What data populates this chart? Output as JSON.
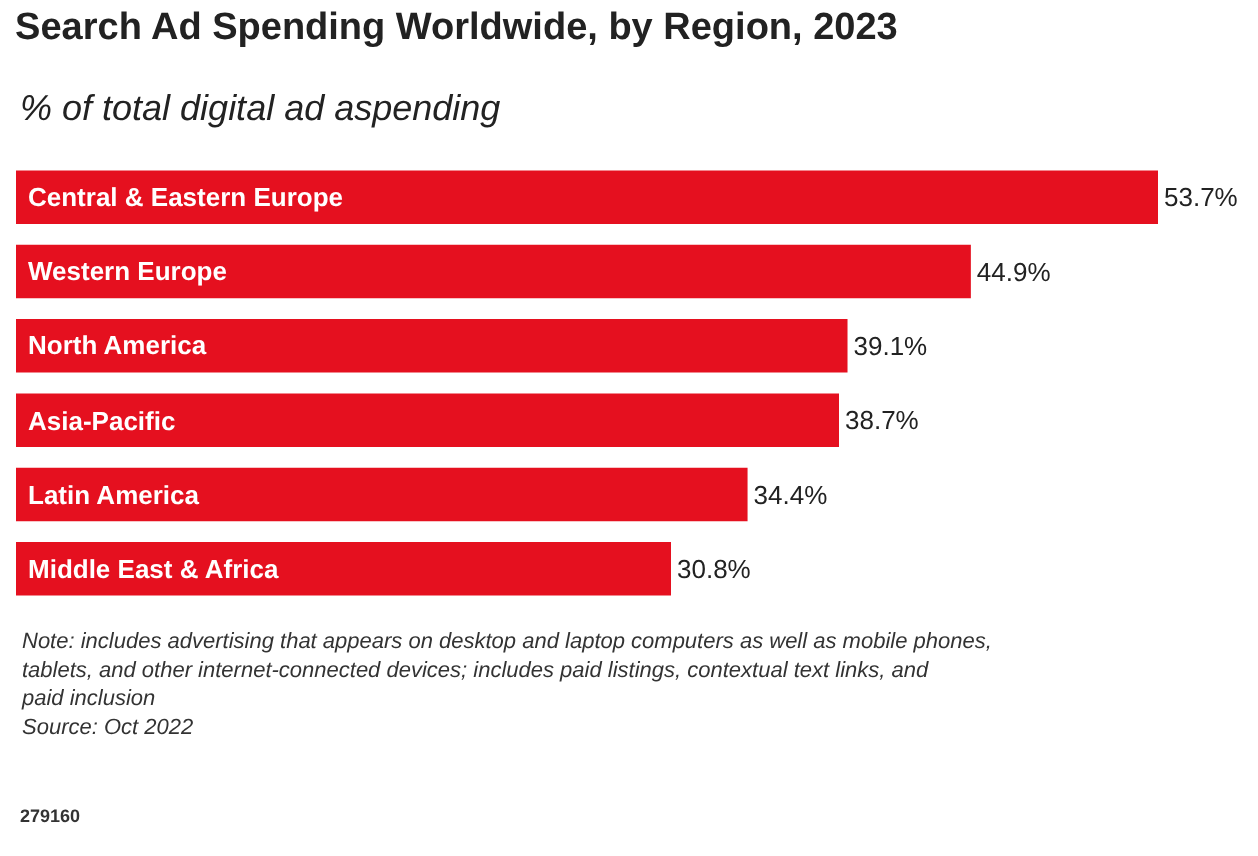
{
  "chart_data": {
    "type": "bar",
    "orientation": "horizontal",
    "title": "Search Ad Spending Worldwide, by Region, 2023",
    "subtitle": "% of total digital ad aspending",
    "categories": [
      "Central & Eastern Europe",
      "Western Europe",
      "North America",
      "Asia-Pacific",
      "Latin America",
      "Middle East & Africa"
    ],
    "values": [
      53.7,
      44.9,
      39.1,
      38.7,
      34.4,
      30.8
    ],
    "value_labels": [
      "53.7%",
      "44.9%",
      "39.1%",
      "38.7%",
      "34.4%",
      "30.8%"
    ],
    "color": "#e5101f",
    "annotations": [
      "Note: includes advertising that appears on desktop and laptop computers as well as mobile phones, tablets, and other internet-connected devices; includes paid listings, contextual text links, and paid inclusion",
      "Source: Oct 2022",
      "279160"
    ]
  }
}
